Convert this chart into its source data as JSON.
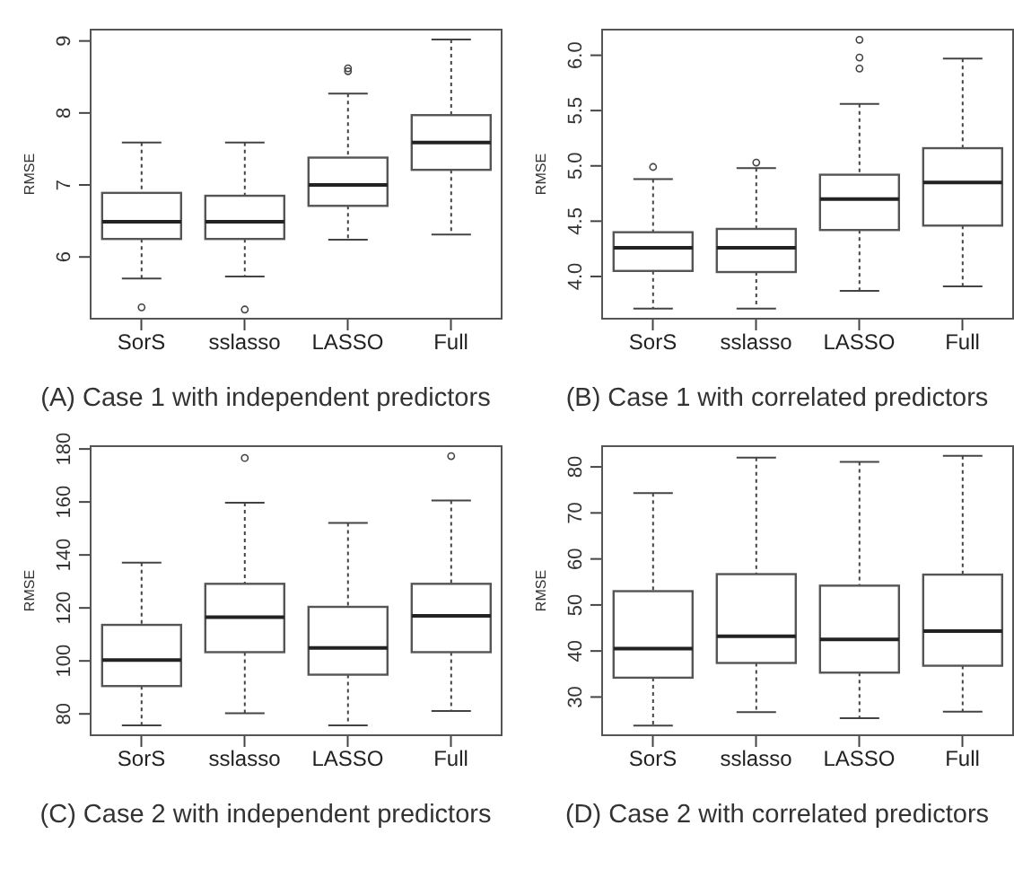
{
  "chart_data": [
    {
      "type": "box",
      "title": "(A) Case 1 with independent predictors",
      "ylabel": "RMSE",
      "categories": [
        "SorS",
        "sslasso",
        "LASSO",
        "Full"
      ],
      "ylim": [
        5.13,
        9.17
      ],
      "yticks": [
        6,
        7,
        8,
        9
      ],
      "boxes": [
        {
          "low": 5.7,
          "q1": 6.25,
          "median": 6.49,
          "q3": 6.89,
          "high": 7.59,
          "outliers": [
            5.3
          ]
        },
        {
          "low": 5.73,
          "q1": 6.25,
          "median": 6.49,
          "q3": 6.85,
          "high": 7.59,
          "outliers": [
            5.27
          ]
        },
        {
          "low": 6.24,
          "q1": 6.71,
          "median": 7.0,
          "q3": 7.38,
          "high": 8.27,
          "outliers": [
            8.58,
            8.62
          ]
        },
        {
          "low": 6.31,
          "q1": 7.21,
          "median": 7.59,
          "q3": 7.97,
          "high": 9.02
        }
      ]
    },
    {
      "type": "box",
      "title": "(B) Case 1 with correlated predictors",
      "ylabel": "RMSE",
      "categories": [
        "SorS",
        "sslasso",
        "LASSO",
        "Full"
      ],
      "ylim": [
        3.61,
        6.24
      ],
      "yticks": [
        {
          "value": 4,
          "label": "4.0"
        },
        4.5,
        {
          "value": 5,
          "label": "5.0"
        },
        5.5,
        {
          "value": 6,
          "label": "6.0"
        }
      ],
      "boxes": [
        {
          "low": 3.71,
          "q1": 4.05,
          "median": 4.26,
          "q3": 4.4,
          "high": 4.88,
          "outliers": [
            4.99
          ]
        },
        {
          "low": 3.71,
          "q1": 4.04,
          "median": 4.26,
          "q3": 4.43,
          "high": 4.98,
          "outliers": [
            5.03
          ]
        },
        {
          "low": 3.87,
          "q1": 4.42,
          "median": 4.7,
          "q3": 4.92,
          "high": 5.56,
          "outliers": [
            5.88,
            5.98,
            6.14
          ]
        },
        {
          "low": 3.91,
          "q1": 4.46,
          "median": 4.85,
          "q3": 5.16,
          "high": 5.97
        }
      ]
    },
    {
      "type": "box",
      "title": "(C) Case 2 with independent predictors",
      "ylabel": "RMSE",
      "categories": [
        "SorS",
        "sslasso",
        "LASSO",
        "Full"
      ],
      "ylim": [
        71.6,
        181.4
      ],
      "yticks": [
        80,
        100,
        120,
        140,
        160,
        180
      ],
      "boxes": [
        {
          "low": 75.7,
          "q1": 90.5,
          "median": 100.3,
          "q3": 113.6,
          "high": 137.1
        },
        {
          "low": 80.2,
          "q1": 103.3,
          "median": 116.5,
          "q3": 129.1,
          "high": 159.7,
          "outliers": [
            176.6
          ]
        },
        {
          "low": 75.7,
          "q1": 94.8,
          "median": 104.9,
          "q3": 120.4,
          "high": 152.1
        },
        {
          "low": 81.1,
          "q1": 103.3,
          "median": 117,
          "q3": 129.1,
          "high": 160.6,
          "outliers": [
            177.3
          ]
        }
      ]
    },
    {
      "type": "box",
      "title": "(D) Case 2 with correlated predictors",
      "ylabel": "RMSE",
      "categories": [
        "SorS",
        "sslasso",
        "LASSO",
        "Full"
      ],
      "ylim": [
        21.5,
        84.7
      ],
      "yticks": [
        30,
        40,
        50,
        60,
        70,
        80
      ],
      "boxes": [
        {
          "low": 23.8,
          "q1": 34.2,
          "median": 40.5,
          "q3": 53,
          "high": 74.3
        },
        {
          "low": 26.7,
          "q1": 37.4,
          "median": 43.2,
          "q3": 56.7,
          "high": 82
        },
        {
          "low": 25.4,
          "q1": 35.3,
          "median": 42.5,
          "q3": 54.2,
          "high": 81.1
        },
        {
          "low": 26.8,
          "q1": 36.8,
          "median": 44.3,
          "q3": 56.6,
          "high": 82.4
        }
      ]
    }
  ]
}
